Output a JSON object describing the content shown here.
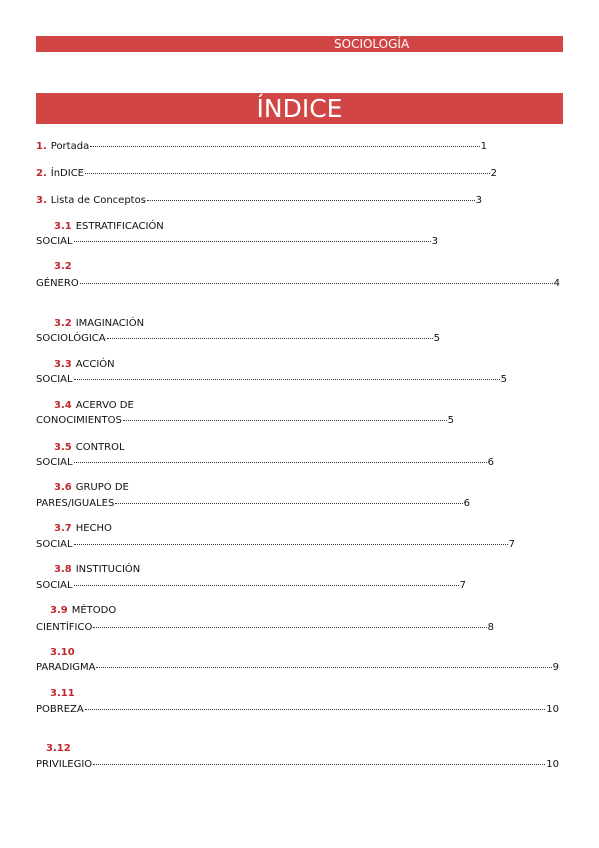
{
  "header": {
    "title": "SOCIOLOGÍA"
  },
  "title": "ÍNDICE",
  "entries": [
    {
      "number": "1.",
      "label": "Portada",
      "page": "1"
    },
    {
      "number": "2.",
      "label": "ÍnDICE",
      "page": "2"
    },
    {
      "number": "3.",
      "label": "Lista de Conceptos",
      "page": "3"
    },
    {
      "number": "3.1",
      "heading": "ESTRATIFICACIÓN",
      "label": "SOCIAL",
      "page": "3"
    },
    {
      "number": "3.2",
      "label": "GÉNERO",
      "page": "4"
    },
    {
      "number": "3.2",
      "heading": "IMAGINACIÓN",
      "label": "SOCIOLÓGICA",
      "page": "5"
    },
    {
      "number": "3.3",
      "heading": "ACCIÓN",
      "label": "SOCIAL",
      "page": "5"
    },
    {
      "number": "3.4",
      "heading": "ACERVO DE",
      "label": "CONOCIMIENTOS",
      "page": "5"
    },
    {
      "number": "3.5",
      "heading": "CONTROL",
      "label": "SOCIAL",
      "page": "6"
    },
    {
      "number": "3.6",
      "heading": "GRUPO DE",
      "label": "PARES/IGUALES",
      "page": "6"
    },
    {
      "number": "3.7",
      "heading": "HECHO",
      "label": "SOCIAL",
      "page": "7"
    },
    {
      "number": "3.8",
      "heading": "INSTITUCIÓN",
      "label": "SOCIAL",
      "page": "7"
    },
    {
      "number": "3.9",
      "heading": "MÉTODO",
      "label": "CIENTÍFICO",
      "page": "8"
    },
    {
      "number": "3.10",
      "label": "PARADIGMA",
      "page": "9"
    },
    {
      "number": "3.11",
      "label": "POBREZA",
      "page": "10"
    },
    {
      "number": "3.12",
      "label": "PRIVILEGIO",
      "page": "10"
    }
  ]
}
